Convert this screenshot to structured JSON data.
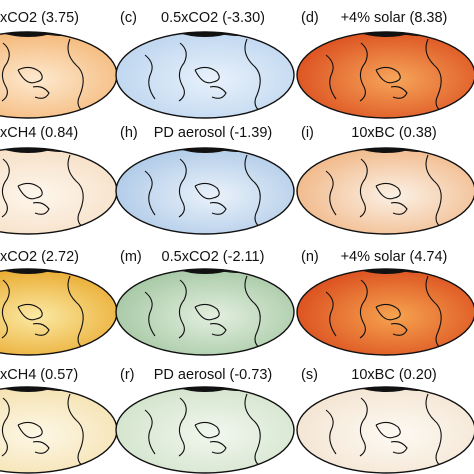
{
  "panels": [
    {
      "label": "xCO2 (3.75)"
    },
    {
      "letter": "(c)",
      "label": "0.5xCO2 (-3.30)"
    },
    {
      "letter": "(d)",
      "label": "+4% solar (8.38)"
    },
    {
      "label": "xCH4 (0.84)"
    },
    {
      "letter": "(h)",
      "label": "PD aerosol (-1.39)"
    },
    {
      "letter": "(i)",
      "label": "10xBC (0.38)"
    },
    {
      "label": "xCO2 (2.72)"
    },
    {
      "letter": "(m)",
      "label": "0.5xCO2 (-2.11)"
    },
    {
      "letter": "(n)",
      "label": "+4% solar (4.74)"
    },
    {
      "label": "xCH4 (0.57)"
    },
    {
      "letter": "(r)",
      "label": "PD aerosol (-0.73)"
    },
    {
      "letter": "(s)",
      "label": "10xBC (0.20)"
    }
  ]
}
